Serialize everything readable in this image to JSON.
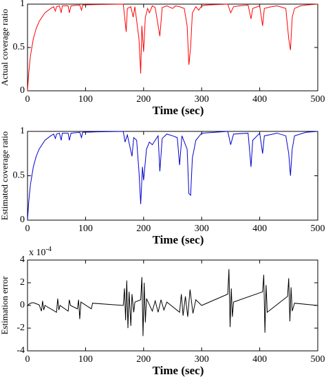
{
  "chart_data": [
    {
      "type": "line",
      "xlabel": "Time (sec)",
      "ylabel": "Actual coverage ratio",
      "color": "#ff0000",
      "xlim": [
        0,
        500
      ],
      "xticks": [
        0,
        100,
        200,
        300,
        400,
        500
      ],
      "ylim": [
        0,
        1
      ],
      "yticks": [
        0,
        0.5,
        1
      ],
      "x": [
        0,
        2,
        5,
        10,
        15,
        20,
        30,
        40,
        45,
        48,
        50,
        55,
        58,
        60,
        70,
        72,
        75,
        90,
        93,
        95,
        120,
        165,
        170,
        172,
        178,
        182,
        185,
        192,
        195,
        197,
        200,
        203,
        207,
        210,
        215,
        220,
        228,
        232,
        240,
        250,
        255,
        262,
        270,
        275,
        278,
        281,
        284,
        290,
        295,
        300,
        310,
        345,
        350,
        355,
        365,
        380,
        385,
        388,
        400,
        405,
        408,
        420,
        430,
        445,
        450,
        453,
        456,
        460,
        470,
        480,
        500
      ],
      "values": [
        0,
        0.2,
        0.4,
        0.6,
        0.72,
        0.8,
        0.9,
        0.95,
        0.97,
        0.92,
        0.97,
        0.98,
        0.9,
        0.98,
        0.98,
        0.9,
        0.98,
        0.99,
        0.93,
        0.99,
        0.995,
        1,
        0.68,
        0.95,
        0.97,
        0.85,
        0.97,
        0.6,
        0.2,
        0.75,
        0.45,
        0.85,
        0.95,
        0.9,
        0.98,
        0.96,
        0.63,
        0.96,
        0.98,
        0.95,
        0.98,
        0.97,
        0.95,
        0.75,
        0.3,
        0.5,
        0.9,
        0.97,
        0.93,
        0.98,
        0.99,
        1,
        0.9,
        0.97,
        0.98,
        0.99,
        0.83,
        0.95,
        0.98,
        0.75,
        0.95,
        0.97,
        0.98,
        0.95,
        0.6,
        0.47,
        0.85,
        0.95,
        0.98,
        0.99,
        1
      ]
    },
    {
      "type": "line",
      "xlabel": "Time (sec)",
      "ylabel": "Estimated coverage ratio",
      "color": "#0000cc",
      "xlim": [
        0,
        500
      ],
      "xticks": [
        0,
        100,
        200,
        300,
        400,
        500
      ],
      "ylim": [
        0,
        1
      ],
      "yticks": [
        0,
        0.5,
        1
      ],
      "x": [
        0,
        2,
        5,
        10,
        15,
        20,
        30,
        40,
        45,
        48,
        50,
        55,
        58,
        60,
        70,
        72,
        75,
        90,
        93,
        95,
        120,
        165,
        168,
        172,
        180,
        183,
        188,
        192,
        195,
        198,
        200,
        205,
        210,
        215,
        220,
        225,
        228,
        232,
        240,
        250,
        258,
        262,
        266,
        275,
        278,
        281,
        284,
        290,
        300,
        345,
        350,
        355,
        380,
        385,
        388,
        400,
        405,
        408,
        430,
        445,
        450,
        453,
        456,
        460,
        480,
        500
      ],
      "values": [
        0,
        0.2,
        0.4,
        0.6,
        0.72,
        0.8,
        0.9,
        0.95,
        0.97,
        0.92,
        0.97,
        0.98,
        0.9,
        0.98,
        0.98,
        0.9,
        0.98,
        0.99,
        0.93,
        0.99,
        0.995,
        1,
        0.88,
        0.96,
        0.72,
        0.93,
        0.9,
        0.55,
        0.18,
        0.6,
        0.45,
        0.8,
        0.88,
        0.85,
        0.9,
        0.95,
        0.55,
        0.92,
        0.97,
        0.95,
        0.93,
        0.62,
        0.95,
        0.8,
        0.3,
        0.28,
        0.7,
        0.9,
        0.98,
        1,
        0.85,
        0.97,
        0.98,
        0.6,
        0.9,
        0.98,
        0.75,
        0.95,
        0.98,
        0.95,
        0.75,
        0.5,
        0.8,
        0.95,
        0.99,
        1
      ]
    },
    {
      "type": "line",
      "xlabel": "Time (sec)",
      "ylabel": "Estimation error",
      "color": "#000000",
      "offset_text": {
        "base": "x 10",
        "exponent": "-4"
      },
      "xlim": [
        0,
        500
      ],
      "xticks": [
        0,
        100,
        200,
        300,
        400,
        500
      ],
      "ylim": [
        -4,
        4
      ],
      "yticks": [
        -4,
        -2,
        0,
        2,
        4
      ],
      "x": [
        0,
        5,
        10,
        15,
        20,
        24,
        26,
        28,
        30,
        50,
        52,
        54,
        56,
        70,
        72,
        74,
        86,
        88,
        90,
        92,
        110,
        112,
        165,
        167,
        169,
        171,
        173,
        175,
        178,
        180,
        183,
        185,
        195,
        197,
        199,
        201,
        203,
        205,
        215,
        220,
        225,
        230,
        235,
        240,
        262,
        265,
        268,
        272,
        276,
        280,
        285,
        290,
        300,
        345,
        347,
        349,
        351,
        353,
        355,
        405,
        407,
        409,
        411,
        413,
        448,
        450,
        452,
        454,
        456,
        460,
        500
      ],
      "values": [
        0,
        0.2,
        0.25,
        0.15,
        0.05,
        -0.5,
        0.4,
        -0.4,
        0,
        -0.6,
        0.6,
        -0.4,
        0,
        -0.5,
        0.5,
        0,
        -0.3,
        0.5,
        -1.2,
        0.3,
        -0.3,
        0.2,
        0,
        1.5,
        -1.3,
        2.2,
        -2,
        1.2,
        -1.8,
        1,
        -0.6,
        0.3,
        0.5,
        2.5,
        -2.7,
        2,
        -1.5,
        0.6,
        -0.5,
        0.4,
        -0.6,
        0.5,
        -0.4,
        0.3,
        -0.6,
        1,
        -0.9,
        0.8,
        -1,
        1.4,
        -0.7,
        0.5,
        0,
        1,
        3.2,
        -1.9,
        1.5,
        -1,
        0.3,
        1.2,
        2.7,
        -2.4,
        1.8,
        -0.6,
        0.8,
        2.4,
        -1.4,
        1.6,
        -0.5,
        0.2,
        0
      ]
    }
  ]
}
